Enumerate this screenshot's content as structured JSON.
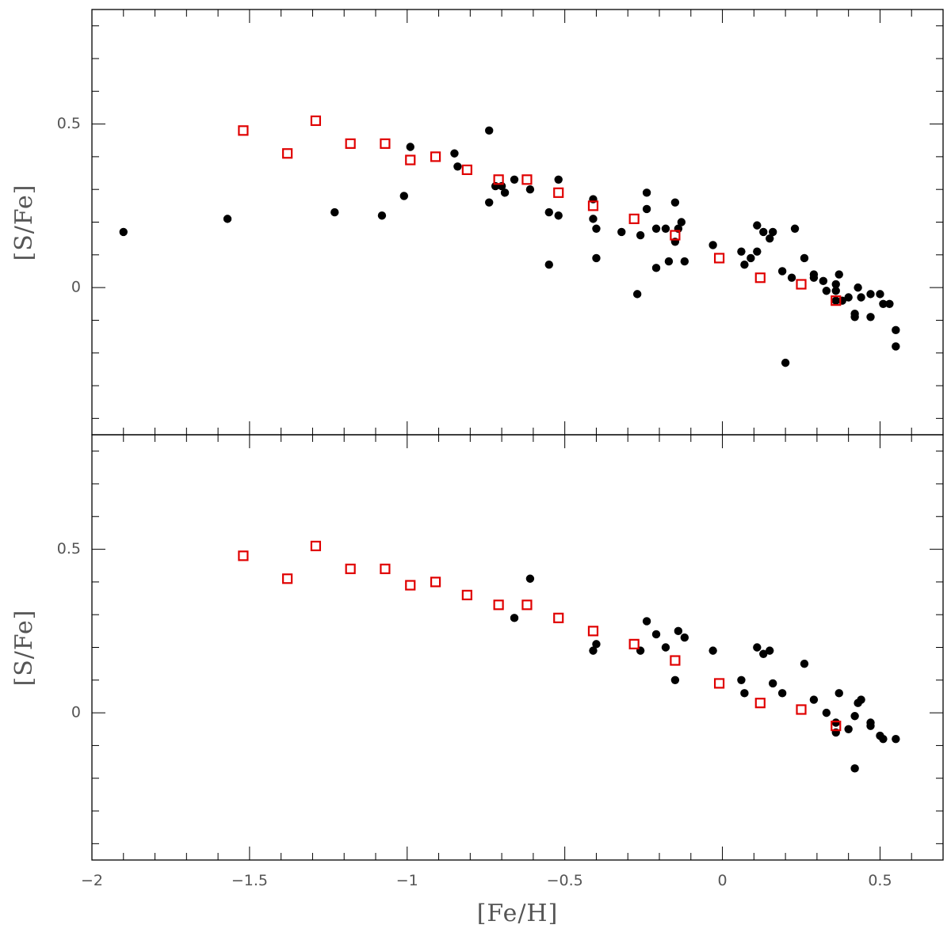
{
  "chart_data": {
    "type": "scatter",
    "xlabel": "[Fe/H]",
    "xlim": [
      -2.0,
      0.7
    ],
    "x_ticks": [
      -2,
      -1.5,
      -1,
      -0.5,
      0,
      0.5
    ],
    "x_tick_labels": [
      "−2",
      "−1.5",
      "−1",
      "−0.5",
      "0",
      "0.5"
    ],
    "colors": {
      "stars": "#000000",
      "model": "#e00000"
    },
    "panels": [
      {
        "id": "top",
        "ylabel": "[S/Fe]",
        "ylim": [
          -0.45,
          0.85
        ],
        "y_ticks": [
          0,
          0.5
        ],
        "y_tick_labels": [
          "0",
          "0.5"
        ],
        "series": [
          {
            "name": "stars",
            "marker": "filled-circle",
            "points": [
              [
                -1.9,
                0.17
              ],
              [
                -1.57,
                0.21
              ],
              [
                -1.23,
                0.23
              ],
              [
                -1.08,
                0.22
              ],
              [
                -1.01,
                0.28
              ],
              [
                -0.99,
                0.43
              ],
              [
                -0.85,
                0.41
              ],
              [
                -0.84,
                0.37
              ],
              [
                -0.74,
                0.48
              ],
              [
                -0.74,
                0.26
              ],
              [
                -0.72,
                0.31
              ],
              [
                -0.7,
                0.31
              ],
              [
                -0.69,
                0.29
              ],
              [
                -0.66,
                0.33
              ],
              [
                -0.61,
                0.3
              ],
              [
                -0.55,
                0.23
              ],
              [
                -0.55,
                0.07
              ],
              [
                -0.52,
                0.33
              ],
              [
                -0.52,
                0.22
              ],
              [
                -0.41,
                0.27
              ],
              [
                -0.41,
                0.21
              ],
              [
                -0.4,
                0.18
              ],
              [
                -0.4,
                0.09
              ],
              [
                -0.32,
                0.17
              ],
              [
                -0.27,
                -0.02
              ],
              [
                -0.26,
                0.16
              ],
              [
                -0.24,
                0.29
              ],
              [
                -0.24,
                0.24
              ],
              [
                -0.21,
                0.18
              ],
              [
                -0.21,
                0.06
              ],
              [
                -0.18,
                0.18
              ],
              [
                -0.17,
                0.08
              ],
              [
                -0.15,
                0.26
              ],
              [
                -0.15,
                0.14
              ],
              [
                -0.14,
                0.18
              ],
              [
                -0.13,
                0.2
              ],
              [
                -0.12,
                0.08
              ],
              [
                -0.03,
                0.13
              ],
              [
                0.06,
                0.11
              ],
              [
                0.07,
                0.07
              ],
              [
                0.09,
                0.09
              ],
              [
                0.11,
                0.19
              ],
              [
                0.11,
                0.11
              ],
              [
                0.13,
                0.17
              ],
              [
                0.15,
                0.15
              ],
              [
                0.16,
                0.17
              ],
              [
                0.19,
                0.05
              ],
              [
                0.2,
                -0.23
              ],
              [
                0.22,
                0.03
              ],
              [
                0.23,
                0.18
              ],
              [
                0.26,
                0.09
              ],
              [
                0.29,
                0.04
              ],
              [
                0.29,
                0.03
              ],
              [
                0.32,
                0.02
              ],
              [
                0.33,
                -0.01
              ],
              [
                0.36,
                0.01
              ],
              [
                0.36,
                -0.01
              ],
              [
                0.36,
                -0.04
              ],
              [
                0.37,
                0.04
              ],
              [
                0.38,
                -0.04
              ],
              [
                0.4,
                -0.03
              ],
              [
                0.42,
                -0.08
              ],
              [
                0.42,
                -0.09
              ],
              [
                0.43,
                0.0
              ],
              [
                0.44,
                -0.03
              ],
              [
                0.47,
                -0.02
              ],
              [
                0.47,
                -0.09
              ],
              [
                0.5,
                -0.02
              ],
              [
                0.51,
                -0.05
              ],
              [
                0.53,
                -0.05
              ],
              [
                0.55,
                -0.13
              ],
              [
                0.55,
                -0.18
              ]
            ]
          },
          {
            "name": "model",
            "marker": "open-square",
            "points": [
              [
                -1.52,
                0.48
              ],
              [
                -1.38,
                0.41
              ],
              [
                -1.29,
                0.51
              ],
              [
                -1.18,
                0.44
              ],
              [
                -1.07,
                0.44
              ],
              [
                -0.99,
                0.39
              ],
              [
                -0.91,
                0.4
              ],
              [
                -0.81,
                0.36
              ],
              [
                -0.71,
                0.33
              ],
              [
                -0.62,
                0.33
              ],
              [
                -0.52,
                0.29
              ],
              [
                -0.41,
                0.25
              ],
              [
                -0.28,
                0.21
              ],
              [
                -0.15,
                0.16
              ],
              [
                -0.01,
                0.09
              ],
              [
                0.12,
                0.03
              ],
              [
                0.25,
                0.01
              ],
              [
                0.36,
                -0.04
              ]
            ]
          }
        ]
      },
      {
        "id": "bottom",
        "ylabel": "[S/Fe]",
        "ylim": [
          -0.45,
          0.85
        ],
        "y_ticks": [
          0,
          0.5
        ],
        "y_tick_labels": [
          "0",
          "0.5"
        ],
        "series": [
          {
            "name": "stars",
            "marker": "filled-circle",
            "points": [
              [
                -0.66,
                0.29
              ],
              [
                -0.61,
                0.41
              ],
              [
                -0.41,
                0.19
              ],
              [
                -0.4,
                0.21
              ],
              [
                -0.26,
                0.19
              ],
              [
                -0.24,
                0.28
              ],
              [
                -0.21,
                0.24
              ],
              [
                -0.18,
                0.2
              ],
              [
                -0.15,
                0.1
              ],
              [
                -0.14,
                0.25
              ],
              [
                -0.12,
                0.23
              ],
              [
                -0.03,
                0.19
              ],
              [
                0.06,
                0.1
              ],
              [
                0.07,
                0.06
              ],
              [
                0.11,
                0.2
              ],
              [
                0.13,
                0.18
              ],
              [
                0.15,
                0.19
              ],
              [
                0.16,
                0.09
              ],
              [
                0.19,
                0.06
              ],
              [
                0.26,
                0.15
              ],
              [
                0.29,
                0.04
              ],
              [
                0.33,
                0.0
              ],
              [
                0.36,
                -0.03
              ],
              [
                0.36,
                -0.06
              ],
              [
                0.37,
                0.06
              ],
              [
                0.4,
                -0.05
              ],
              [
                0.42,
                -0.01
              ],
              [
                0.42,
                -0.17
              ],
              [
                0.43,
                0.03
              ],
              [
                0.44,
                0.04
              ],
              [
                0.47,
                -0.03
              ],
              [
                0.47,
                -0.04
              ],
              [
                0.5,
                -0.07
              ],
              [
                0.51,
                -0.08
              ],
              [
                0.55,
                -0.08
              ]
            ]
          },
          {
            "name": "model",
            "marker": "open-square",
            "points": [
              [
                -1.52,
                0.48
              ],
              [
                -1.38,
                0.41
              ],
              [
                -1.29,
                0.51
              ],
              [
                -1.18,
                0.44
              ],
              [
                -1.07,
                0.44
              ],
              [
                -0.99,
                0.39
              ],
              [
                -0.91,
                0.4
              ],
              [
                -0.81,
                0.36
              ],
              [
                -0.71,
                0.33
              ],
              [
                -0.62,
                0.33
              ],
              [
                -0.52,
                0.29
              ],
              [
                -0.41,
                0.25
              ],
              [
                -0.28,
                0.21
              ],
              [
                -0.15,
                0.16
              ],
              [
                -0.01,
                0.09
              ],
              [
                0.12,
                0.03
              ],
              [
                0.25,
                0.01
              ],
              [
                0.36,
                -0.04
              ]
            ]
          }
        ]
      }
    ]
  }
}
